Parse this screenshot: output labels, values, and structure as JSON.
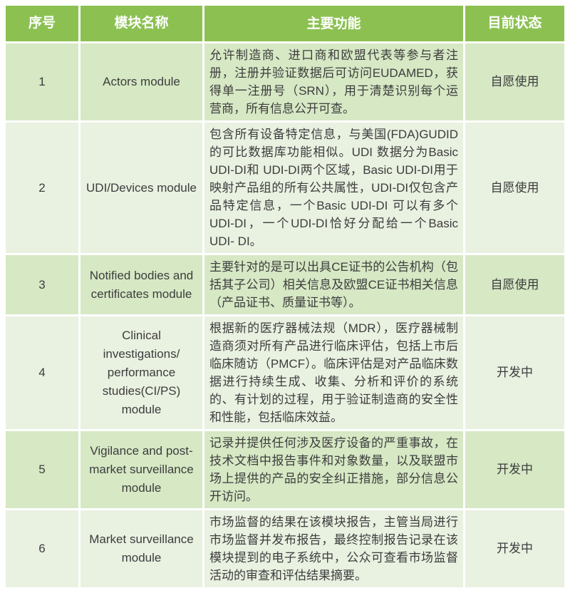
{
  "table": {
    "columns": [
      "序号",
      "模块名称",
      "主要功能",
      "目前状态"
    ],
    "rows": [
      {
        "no": "1",
        "module": "Actors module",
        "function": "允许制造商、进口商和欧盟代表等参与者注册，注册并验证数据后可访问EUDAMED，获得单一注册号（SRN），用于清楚识别每个运营商，所有信息公开可查。",
        "status": "自愿使用"
      },
      {
        "no": "2",
        "module": "UDI/Devices module",
        "function": "包含所有设备特定信息，与美国(FDA)GUDID的可比数据库功能相似。UDI 数据分为Basic UDI-DI和 UDI-DI两个区域，Basic UDI-DI用于映射产品组的所有公共属性，UDI-DI仅包含产品特定信息，一个Basic UDI-DI 可以有多个UDI-DI，一个UDI-DI恰好分配给一个Basic UDI- DI。",
        "status": "自愿使用"
      },
      {
        "no": "3",
        "module": "Notified bodies and certificates module",
        "function": "主要针对的是可以出具CE证书的公告机构（包括其子公司）相关信息及欧盟CE证书相关信息（产品证书、质量证书等）。",
        "status": "自愿使用"
      },
      {
        "no": "4",
        "module": "Clinical investigations/ performance studies(CI/PS) module",
        "function": "根据新的医疗器械法规（MDR），医疗器械制造商须对所有产品进行临床评估，包括上市后临床随访（PMCF）。临床评估是对产品临床数据进行持续生成、收集、分析和评价的系统的、有计划的过程，用于验证制造商的安全性和性能，包括临床效益。",
        "status": "开发中"
      },
      {
        "no": "5",
        "module": "Vigilance and post-market surveillance module",
        "function": "记录并提供任何涉及医疗设备的严重事故，在技术文档中报告事件和对象数量，以及联盟市场上提供的产品的安全纠正措施，部分信息公开访问。",
        "status": "开发中"
      },
      {
        "no": "6",
        "module": "Market surveillance module",
        "function": "市场监督的结果在该模块报告，主管当局进行市场监督并发布报告，最终控制报告记录在该模块提到的电子系统中，公众可查看市场监督活动的审查和评估结果摘要。",
        "status": "开发中"
      }
    ]
  },
  "colors": {
    "header_bg": "#8cc152",
    "header_text": "#ffffff",
    "row_odd_bg": "#d6e8c4",
    "row_even_bg": "#e9f1e1",
    "body_text": "#3d3d3d",
    "grid_line": "#ffffff"
  }
}
